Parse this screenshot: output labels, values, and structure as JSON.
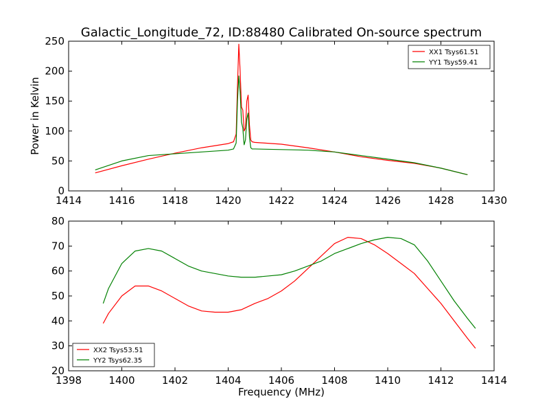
{
  "figure": {
    "title": "Galactic_Longitude_72, ID:88480 Calibrated On-source spectrum",
    "xlabel": "Frequency (MHz)"
  },
  "colors": {
    "red": "#ff0000",
    "green": "#008000"
  },
  "chart_data": [
    {
      "type": "line",
      "title": "Galactic_Longitude_72, ID:88480 Calibrated On-source spectrum",
      "xlabel": "",
      "ylabel": "Power in Kelvin",
      "xlim": [
        1414,
        1430
      ],
      "ylim": [
        0,
        250
      ],
      "xticks": [
        1414,
        1416,
        1418,
        1420,
        1422,
        1424,
        1426,
        1428,
        1430
      ],
      "yticks": [
        0,
        50,
        100,
        150,
        200,
        250
      ],
      "grid": false,
      "legend_position": "top-right",
      "series": [
        {
          "name": "XX1 Tsys61.51",
          "color": "#ff0000",
          "x": [
            1415.0,
            1416.0,
            1417.0,
            1418.0,
            1419.0,
            1420.0,
            1420.2,
            1420.3,
            1420.35,
            1420.4,
            1420.45,
            1420.5,
            1420.55,
            1420.6,
            1420.65,
            1420.7,
            1420.75,
            1420.8,
            1420.85,
            1420.9,
            1421.0,
            1422.0,
            1423.0,
            1424.0,
            1425.0,
            1426.0,
            1427.0,
            1428.0,
            1429.0
          ],
          "y": [
            30,
            42,
            53,
            63,
            72,
            79,
            82,
            95,
            175,
            245,
            200,
            140,
            135,
            100,
            105,
            150,
            160,
            110,
            85,
            82,
            81,
            78,
            72,
            65,
            57,
            51,
            46,
            38,
            27
          ]
        },
        {
          "name": "YY1 Tsys59.41",
          "color": "#008000",
          "x": [
            1415.0,
            1416.0,
            1417.0,
            1418.0,
            1419.0,
            1420.0,
            1420.2,
            1420.3,
            1420.35,
            1420.4,
            1420.45,
            1420.5,
            1420.55,
            1420.6,
            1420.65,
            1420.7,
            1420.75,
            1420.8,
            1420.85,
            1420.9,
            1421.0,
            1422.0,
            1423.0,
            1424.0,
            1425.0,
            1426.0,
            1427.0,
            1428.0,
            1429.0
          ],
          "y": [
            35,
            50,
            59,
            62,
            65,
            68,
            70,
            80,
            150,
            192,
            165,
            115,
            105,
            77,
            85,
            120,
            130,
            90,
            72,
            70,
            70,
            69,
            68,
            65,
            59,
            53,
            47,
            38,
            27
          ]
        }
      ]
    },
    {
      "type": "line",
      "title": "",
      "xlabel": "Frequency (MHz)",
      "ylabel": "",
      "xlim": [
        1398,
        1414
      ],
      "ylim": [
        20,
        80
      ],
      "xticks": [
        1398,
        1400,
        1402,
        1404,
        1406,
        1408,
        1410,
        1412,
        1414
      ],
      "yticks": [
        20,
        30,
        40,
        50,
        60,
        70,
        80
      ],
      "grid": false,
      "legend_position": "bottom-left",
      "series": [
        {
          "name": "XX2 Tsys53.51",
          "color": "#ff0000",
          "x": [
            1399.3,
            1399.5,
            1400.0,
            1400.5,
            1401.0,
            1401.5,
            1402.0,
            1402.5,
            1403.0,
            1403.5,
            1404.0,
            1404.5,
            1405.0,
            1405.5,
            1406.0,
            1406.5,
            1407.0,
            1407.5,
            1408.0,
            1408.5,
            1409.0,
            1409.5,
            1410.0,
            1410.5,
            1411.0,
            1411.5,
            1412.0,
            1412.5,
            1413.0,
            1413.3
          ],
          "y": [
            39,
            43,
            50,
            54,
            54,
            52,
            49,
            46,
            44,
            43.5,
            43.5,
            44.5,
            47,
            49,
            52,
            56,
            61,
            66,
            71,
            73.5,
            73,
            70.5,
            67,
            63,
            59,
            53,
            47,
            40,
            33,
            29
          ]
        },
        {
          "name": "YY2 Tsys62.35",
          "color": "#008000",
          "x": [
            1399.3,
            1399.5,
            1400.0,
            1400.5,
            1401.0,
            1401.5,
            1402.0,
            1402.5,
            1403.0,
            1403.5,
            1404.0,
            1404.5,
            1405.0,
            1405.5,
            1406.0,
            1406.5,
            1407.0,
            1407.5,
            1408.0,
            1408.5,
            1409.0,
            1409.5,
            1410.0,
            1410.5,
            1411.0,
            1411.5,
            1412.0,
            1412.5,
            1413.0,
            1413.3
          ],
          "y": [
            47,
            53,
            63,
            68,
            69,
            68,
            65,
            62,
            60,
            59,
            58,
            57.5,
            57.5,
            58,
            58.5,
            60,
            62,
            64,
            67,
            69,
            71,
            72.5,
            73.5,
            73,
            70.5,
            64,
            56,
            48,
            41,
            37
          ]
        }
      ]
    }
  ]
}
